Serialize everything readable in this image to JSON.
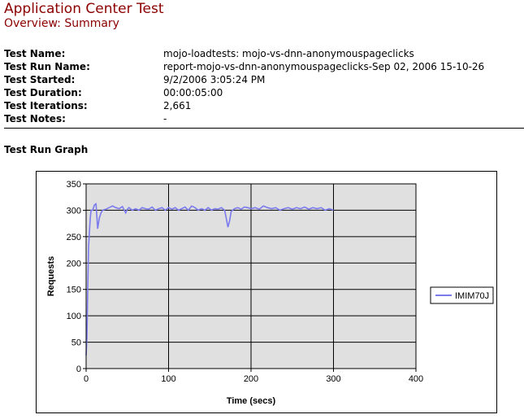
{
  "header": {
    "title": "Application Center Test",
    "subtitle": "Overview: Summary"
  },
  "info": [
    {
      "label": "Test Name:",
      "value": "mojo-loadtests: mojo-vs-dnn-anonymouspageclicks"
    },
    {
      "label": "Test Run Name:",
      "value": "report-mojo-vs-dnn-anonymouspageclicks-Sep 02, 2006 15-10-26"
    },
    {
      "label": "Test Started:",
      "value": "9/2/2006 3:05:24 PM"
    },
    {
      "label": "Test Duration:",
      "value": "00:00:05:00"
    },
    {
      "label": "Test Iterations:",
      "value": "2,661"
    },
    {
      "label": "Test Notes:",
      "value": "-"
    }
  ],
  "section_title": "Test Run Graph",
  "colors": {
    "title": "#8b0000",
    "series": "#7b7bee",
    "plot_bg": "#e0e0e0"
  },
  "chart_data": {
    "type": "line",
    "xlabel": "Time (secs)",
    "ylabel": "Requests",
    "xlim": [
      0,
      400
    ],
    "ylim": [
      0,
      350
    ],
    "x_ticks": [
      0,
      100,
      200,
      300,
      400
    ],
    "y_ticks": [
      0,
      50,
      100,
      150,
      200,
      250,
      300,
      350
    ],
    "grid": true,
    "legend_position": "right",
    "series": [
      {
        "name": "IMIM70J",
        "x": [
          0,
          1,
          2,
          3,
          4,
          5,
          6,
          8,
          10,
          12,
          14,
          16,
          18,
          20,
          24,
          28,
          32,
          36,
          40,
          44,
          48,
          50,
          52,
          56,
          60,
          64,
          68,
          72,
          76,
          80,
          84,
          88,
          92,
          96,
          100,
          104,
          108,
          112,
          116,
          120,
          124,
          128,
          132,
          136,
          140,
          144,
          148,
          152,
          156,
          160,
          164,
          168,
          170,
          172,
          174,
          176,
          180,
          184,
          188,
          192,
          196,
          200,
          205,
          210,
          215,
          220,
          225,
          230,
          235,
          240,
          245,
          250,
          255,
          260,
          265,
          270,
          275,
          280,
          285,
          290,
          295,
          300
        ],
        "values": [
          25,
          60,
          150,
          230,
          260,
          285,
          300,
          300,
          310,
          312,
          265,
          285,
          295,
          300,
          302,
          305,
          308,
          305,
          303,
          307,
          295,
          302,
          305,
          300,
          303,
          300,
          305,
          303,
          302,
          306,
          300,
          303,
          305,
          300,
          305,
          302,
          305,
          300,
          303,
          306,
          300,
          308,
          305,
          300,
          303,
          300,
          305,
          300,
          303,
          302,
          305,
          300,
          285,
          268,
          280,
          298,
          303,
          305,
          302,
          306,
          305,
          303,
          305,
          302,
          308,
          305,
          303,
          305,
          300,
          303,
          305,
          302,
          305,
          303,
          306,
          302,
          305,
          303,
          305,
          300,
          303,
          300
        ]
      }
    ]
  }
}
